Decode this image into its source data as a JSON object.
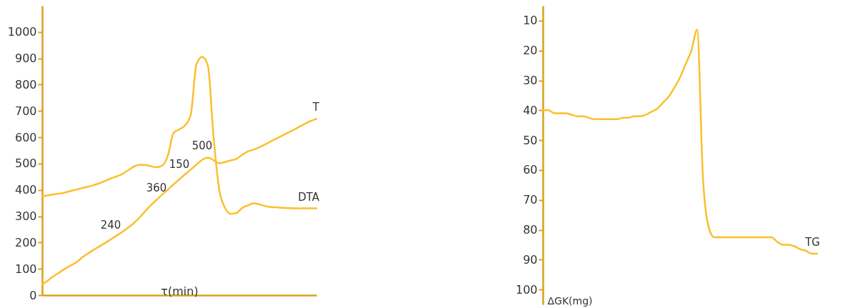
{
  "chart_data": [
    {
      "type": "line",
      "xlabel": "τ(min)",
      "categories": [
        null,
        null,
        null,
        null,
        null,
        null,
        null,
        null,
        null,
        null,
        null,
        null,
        null,
        null,
        null,
        null,
        null,
        null,
        null,
        null,
        null,
        null,
        null,
        null,
        null,
        null,
        null,
        null,
        null,
        null,
        null,
        null,
        null,
        null,
        null,
        null,
        null,
        null,
        null,
        null,
        null,
        null,
        null,
        null,
        null,
        null,
        null,
        null,
        null
      ],
      "series": [
        {
          "name": "DTA",
          "color": "#fbbf2d",
          "values": [
            375,
            379,
            383,
            386,
            390,
            396,
            401,
            407,
            412,
            418,
            425,
            434,
            443,
            451,
            460,
            474,
            488,
            495,
            495,
            490,
            486,
            492,
            530,
            617,
            630,
            645,
            685,
            877,
            906,
            873,
            600,
            400,
            332,
            309,
            312,
            331,
            341,
            349,
            345,
            339,
            335,
            334,
            332,
            331,
            330,
            330,
            330,
            330,
            330
          ]
        },
        {
          "name": "T",
          "color": "#fbbf2d",
          "values": [
            40,
            56,
            72,
            86,
            100,
            113,
            125,
            143,
            158,
            172,
            185,
            198,
            212,
            226,
            240,
            256,
            273,
            294,
            318,
            341,
            362,
            382,
            401,
            421,
            440,
            459,
            477,
            496,
            514,
            523,
            513,
            501,
            506,
            512,
            518,
            533,
            546,
            553,
            562,
            573,
            584,
            595,
            606,
            617,
            628,
            640,
            651,
            662,
            670
          ]
        }
      ],
      "ylim": [
        0,
        1100
      ],
      "yticks": [
        0,
        100,
        200,
        300,
        400,
        500,
        600,
        700,
        800,
        900,
        1000
      ],
      "annotations": [
        {
          "text": "240",
          "y": 210
        },
        {
          "text": "360",
          "y": 350
        },
        {
          "text": "150",
          "y": 440
        },
        {
          "text": "500",
          "y": 510
        }
      ],
      "tick_labels": "y",
      "grid": false,
      "marker": "none",
      "line_style": "solid"
    },
    {
      "type": "line",
      "ylabel": "ΔGK(mg)",
      "categories": [
        null,
        null,
        null,
        null,
        null,
        null,
        null,
        null,
        null,
        null,
        null,
        null,
        null,
        null,
        null,
        null,
        null,
        null,
        null,
        null,
        null,
        null,
        null,
        null,
        null,
        null,
        null,
        null,
        null,
        null,
        null,
        null,
        null,
        null,
        null,
        null,
        null,
        null,
        null,
        null,
        null,
        null,
        null,
        null,
        null,
        null,
        null,
        null,
        null
      ],
      "series": [
        {
          "name": "TG",
          "color": "#fbbf2d",
          "values": [
            40,
            40,
            41,
            41,
            41,
            41.5,
            42,
            42,
            42.5,
            43,
            43,
            43,
            43,
            43,
            42.5,
            42.5,
            42,
            42,
            41.5,
            40.5,
            39.5,
            37.5,
            35.5,
            32.5,
            29,
            24.5,
            20,
            13,
            62,
            79,
            82.5,
            82.5,
            82.5,
            82.5,
            82.5,
            82.5,
            82.5,
            82.5,
            82.5,
            82.5,
            82.5,
            84,
            85,
            85,
            85.5,
            86.5,
            87,
            88,
            88
          ]
        }
      ],
      "ylim": [
        105,
        5
      ],
      "yticks": [
        10,
        20,
        30,
        40,
        50,
        60,
        70,
        80,
        90,
        100
      ],
      "tick_labels": "y",
      "grid": false,
      "marker": "none",
      "line_style": "solid"
    }
  ]
}
